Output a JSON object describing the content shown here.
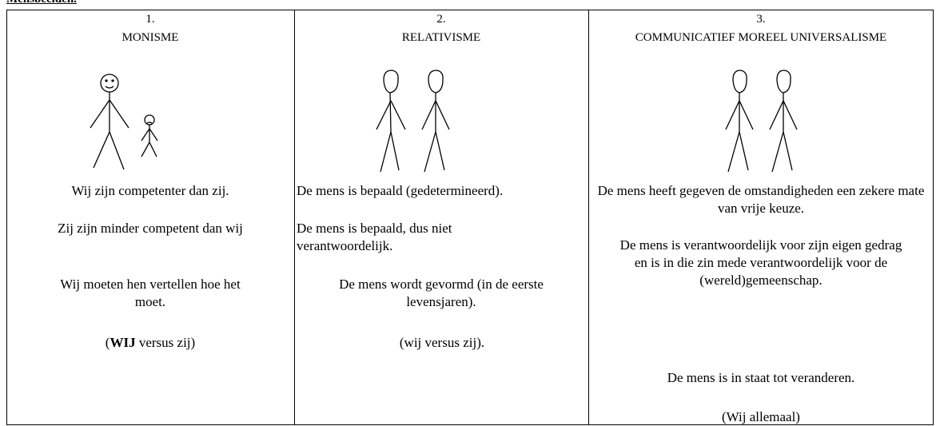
{
  "header": {
    "title": "Mensbeelden."
  },
  "columns": [
    {
      "number": "1.",
      "title": "MONISME",
      "paragraphs": [
        "Wij zijn competenter dan zij.",
        "Zij zijn minder competent dan wij",
        "Wij moeten hen vertellen hoe het moet.",
        [
          "(",
          "WIJ",
          " versus zij)"
        ]
      ]
    },
    {
      "number": "2.",
      "title": "RELATIVISME",
      "paragraphs": [
        "De mens is bepaald (gedetermineerd).",
        "De mens is bepaald, dus niet verantwoordelijk.",
        "De mens wordt gevormd (in de eerste levensjaren).",
        "(wij versus zij)."
      ]
    },
    {
      "number": "3.",
      "title": "COMMUNICATIEF MOREEL UNIVERSALISME",
      "paragraphs": [
        "De mens heeft gegeven de omstandigheden een zekere mate van vrije keuze.",
        "De mens is verantwoordelijk voor zijn eigen gedrag en is in die zin mede verantwoordelijk voor de (wereld)gemeenschap.",
        "De mens is in staat tot veranderen.",
        "(Wij allemaal)"
      ]
    }
  ]
}
